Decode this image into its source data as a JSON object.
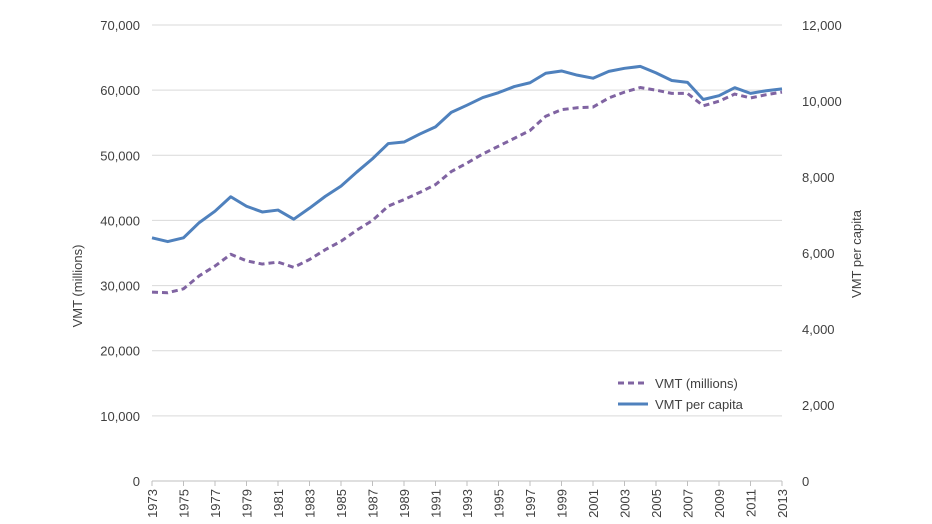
{
  "chart_data": {
    "type": "line",
    "title": "",
    "xlabel": "",
    "ylabel_left": "VMT (millions)",
    "ylabel_right": "VMT per capita",
    "x": [
      1973,
      1974,
      1975,
      1976,
      1977,
      1978,
      1979,
      1980,
      1981,
      1982,
      1983,
      1984,
      1985,
      1986,
      1987,
      1988,
      1989,
      1990,
      1991,
      1992,
      1993,
      1994,
      1995,
      1996,
      1997,
      1998,
      1999,
      2000,
      2001,
      2002,
      2003,
      2004,
      2005,
      2006,
      2007,
      2008,
      2009,
      2010,
      2011,
      2012,
      2013
    ],
    "x_tick_labels": [
      "1973",
      "1975",
      "1977",
      "1979",
      "1981",
      "1983",
      "1985",
      "1987",
      "1989",
      "1991",
      "1993",
      "1995",
      "1997",
      "1999",
      "2001",
      "2003",
      "2005",
      "2007",
      "2009",
      "2011",
      "2013"
    ],
    "ylim_left": [
      0,
      70000
    ],
    "yticks_left": [
      "0",
      "10,000",
      "20,000",
      "30,000",
      "40,000",
      "50,000",
      "60,000",
      "70,000"
    ],
    "ylim_right": [
      0,
      12000
    ],
    "yticks_right": [
      "0",
      "2,000",
      "4,000",
      "6,000",
      "8,000",
      "10,000",
      "12,000"
    ],
    "grid": true,
    "legend_position": "bottom-right",
    "series": [
      {
        "name": "VMT (millions)",
        "axis": "left",
        "style": "dashed",
        "color": "#8064a2",
        "values": [
          29000,
          28900,
          29500,
          31500,
          33000,
          34800,
          33800,
          33300,
          33600,
          32800,
          34000,
          35500,
          36800,
          38500,
          40000,
          42200,
          43200,
          44300,
          45500,
          47500,
          48800,
          50200,
          51400,
          52600,
          53800,
          56000,
          57000,
          57300,
          57400,
          58800,
          59700,
          60400,
          60000,
          59500,
          59500,
          57600,
          58300,
          59400,
          58800,
          59300,
          59700
        ]
      },
      {
        "name": "VMT per capita",
        "axis": "right",
        "style": "solid",
        "color": "#4f81bd",
        "values": [
          6400,
          6300,
          6400,
          6800,
          7100,
          7480,
          7230,
          7080,
          7130,
          6890,
          7180,
          7490,
          7760,
          8130,
          8480,
          8880,
          8920,
          9130,
          9320,
          9700,
          9890,
          10090,
          10220,
          10380,
          10480,
          10730,
          10790,
          10680,
          10600,
          10780,
          10860,
          10910,
          10740,
          10540,
          10490,
          10040,
          10140,
          10350,
          10200,
          10270,
          10320
        ]
      }
    ]
  }
}
